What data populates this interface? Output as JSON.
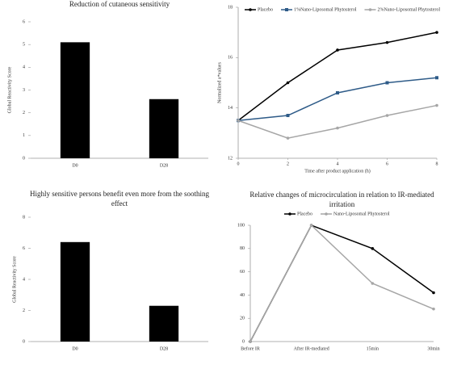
{
  "chart_data": [
    {
      "type": "bar",
      "title": "Reduction of cutaneous sensitivity",
      "y_label": "Global Reactivity Score",
      "categories": [
        "D0",
        "D28"
      ],
      "values": [
        5.1,
        2.6
      ],
      "color": "#000000",
      "ylim": [
        0,
        6
      ],
      "yticks": [
        0,
        1,
        2,
        3,
        4,
        5,
        6
      ]
    },
    {
      "type": "line",
      "x_label": "Time after product application  (h)",
      "y_label": "Normalized a*values",
      "x": [
        0,
        2,
        4,
        6,
        8
      ],
      "xlim": [
        0,
        8
      ],
      "xticks": [
        0,
        2,
        4,
        6,
        8
      ],
      "ylim": [
        12,
        18
      ],
      "yticks": [
        12,
        14,
        16,
        18
      ],
      "legend": "top",
      "series": [
        {
          "name": "Placebo",
          "color": "#000000",
          "marker": "circle",
          "values": [
            13.5,
            15.0,
            16.3,
            16.6,
            17.0
          ]
        },
        {
          "name": "1%Nano-Liposomal Phytosterol",
          "color": "#2e5b88",
          "marker": "square",
          "values": [
            13.5,
            13.7,
            14.6,
            15.0,
            15.2
          ]
        },
        {
          "name": "2%Nano-Liposomal Phytosterol",
          "color": "#a6a6a6",
          "marker": "circle",
          "values": [
            13.5,
            12.8,
            13.2,
            13.7,
            14.1
          ]
        }
      ]
    },
    {
      "type": "bar",
      "title": "Highly sensitive persons benefit even more from the soothing effect",
      "y_label": "Global Reactivity Score",
      "categories": [
        "D0",
        "D28"
      ],
      "values": [
        6.4,
        2.3
      ],
      "color": "#000000",
      "ylim": [
        0,
        8
      ],
      "yticks": [
        0,
        2,
        4,
        6,
        8
      ]
    },
    {
      "type": "line",
      "title": "Relative changes of microcirculation in relation to IR-mediated irritation",
      "categories": [
        "Before IR",
        "After IR-mediated",
        "15min",
        "30min"
      ],
      "ylim": [
        0,
        100
      ],
      "yticks": [
        0,
        20,
        40,
        60,
        80,
        100
      ],
      "legend": "top",
      "series": [
        {
          "name": "Placebo",
          "color": "#000000",
          "marker": "circle",
          "values": [
            0,
            100,
            80,
            42
          ]
        },
        {
          "name": "Nano-Liposomal Phytosterol",
          "color": "#a6a6a6",
          "marker": "circle",
          "values": [
            0,
            100,
            50,
            28
          ]
        }
      ]
    }
  ]
}
